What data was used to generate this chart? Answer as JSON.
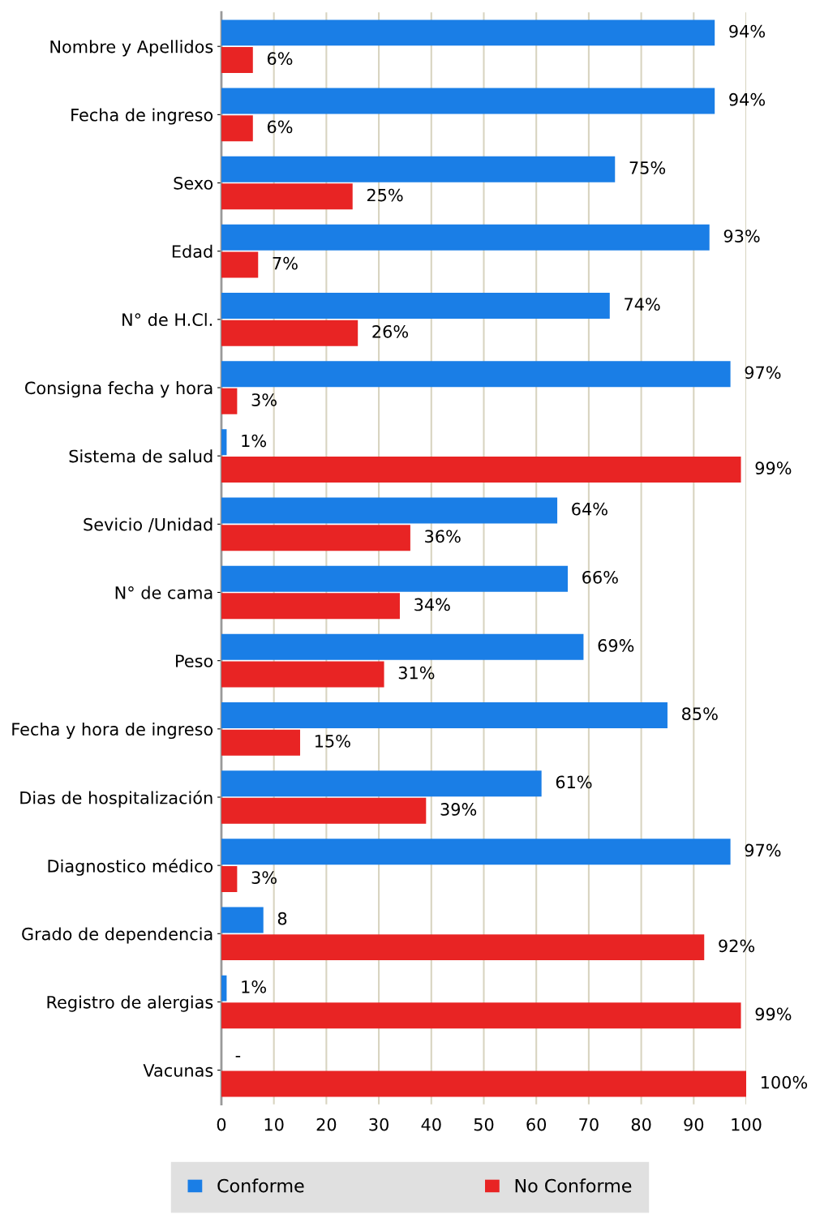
{
  "chart_data": {
    "type": "bar",
    "orientation": "horizontal",
    "categories": [
      "Nombre y Apellidos",
      "Fecha de ingreso",
      "Sexo",
      "Edad",
      "N° de H.Cl.",
      "Consigna fecha y hora",
      "Sistema de salud",
      "Sevicio /Unidad",
      "N° de cama",
      "Peso",
      "Fecha y hora de ingreso",
      "Dias de hospitalización",
      "Diagnostico médico",
      "Grado de dependencia",
      "Registro de alergias",
      "Vacunas"
    ],
    "series": [
      {
        "name": "Conforme",
        "color": "#1a7ee6",
        "values": [
          94,
          94,
          75,
          93,
          74,
          97,
          1,
          64,
          66,
          69,
          85,
          61,
          97,
          8,
          1,
          0
        ],
        "value_labels": [
          "94%",
          "94%",
          "75%",
          "93%",
          "74%",
          "97%",
          "1%",
          "64%",
          "66%",
          "69%",
          "85%",
          "61%",
          "97%",
          "8",
          "1%",
          "-"
        ]
      },
      {
        "name": "No Conforme",
        "color": "#e82424",
        "values": [
          6,
          6,
          25,
          7,
          26,
          3,
          99,
          36,
          34,
          31,
          15,
          39,
          3,
          92,
          99,
          100
        ],
        "value_labels": [
          "6%",
          "6%",
          "25%",
          "7%",
          "26%",
          "3%",
          "99%",
          "36%",
          "34%",
          "31%",
          "15%",
          "39%",
          "3%",
          "92%",
          "99%",
          "100%"
        ]
      }
    ],
    "xlim": [
      0,
      100
    ],
    "xticks": [
      0,
      10,
      20,
      30,
      40,
      50,
      60,
      70,
      80,
      90,
      100
    ],
    "grid": "x",
    "legend": "bottom"
  }
}
